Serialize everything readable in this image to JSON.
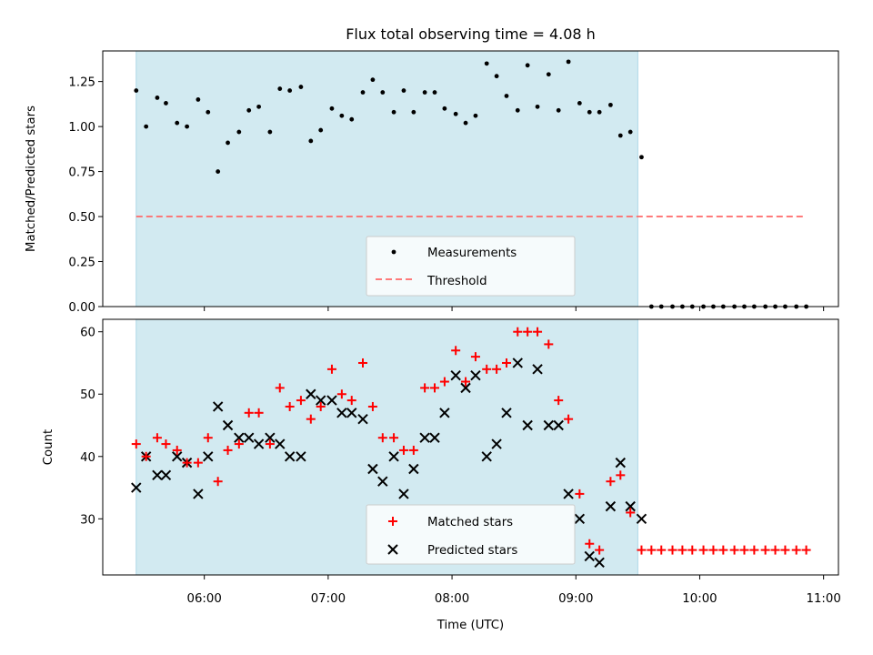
{
  "chart_data": [
    {
      "type": "scatter",
      "title": "Flux total observing time = 4.08 h",
      "xlabel": "",
      "ylabel": "Matched/Predicted stars",
      "ylim": [
        0.0,
        1.42
      ],
      "yticks": [
        "0.00",
        "0.25",
        "0.50",
        "0.75",
        "1.00",
        "1.25"
      ],
      "ytick_values": [
        0.0,
        0.25,
        0.5,
        0.75,
        1.0,
        1.25
      ],
      "shade": {
        "x_start": 5.45,
        "x_end": 9.5,
        "color": "#add8e6"
      },
      "threshold": {
        "name": "Threshold",
        "value": 0.5,
        "x_start": 5.45,
        "x_end": 10.85,
        "color": "#ff6b6b"
      },
      "legend": {
        "position": "lower-center",
        "entries": [
          "Measurements",
          "Threshold"
        ]
      },
      "series": [
        {
          "name": "Measurements",
          "marker": "dot",
          "color": "#000000",
          "x": [
            5.45,
            5.53,
            5.62,
            5.69,
            5.78,
            5.86,
            5.95,
            6.03,
            6.11,
            6.19,
            6.28,
            6.36,
            6.44,
            6.53,
            6.61,
            6.69,
            6.78,
            6.86,
            6.94,
            7.03,
            7.11,
            7.19,
            7.28,
            7.36,
            7.44,
            7.53,
            7.61,
            7.69,
            7.78,
            7.86,
            7.94,
            8.03,
            8.11,
            8.19,
            8.28,
            8.36,
            8.44,
            8.53,
            8.61,
            8.69,
            8.78,
            8.86,
            8.94,
            9.03,
            9.11,
            9.19,
            9.28,
            9.36,
            9.44,
            9.53,
            9.61,
            9.69,
            9.78,
            9.86,
            9.94,
            10.03,
            10.11,
            10.19,
            10.28,
            10.36,
            10.44,
            10.53,
            10.61,
            10.69,
            10.78,
            10.86
          ],
          "y": [
            1.2,
            1.0,
            1.16,
            1.13,
            1.02,
            1.0,
            1.15,
            1.08,
            0.75,
            0.91,
            0.97,
            1.09,
            1.11,
            0.97,
            1.21,
            1.2,
            1.22,
            0.92,
            0.98,
            1.1,
            1.06,
            1.04,
            1.19,
            1.26,
            1.19,
            1.08,
            1.2,
            1.08,
            1.19,
            1.19,
            1.1,
            1.07,
            1.02,
            1.06,
            1.35,
            1.28,
            1.17,
            1.09,
            1.34,
            1.11,
            1.29,
            1.09,
            1.36,
            1.13,
            1.08,
            1.08,
            1.12,
            0.95,
            0.97,
            0.83,
            0,
            0,
            0,
            0,
            0,
            0,
            0,
            0,
            0,
            0,
            0,
            0,
            0,
            0,
            0,
            0
          ]
        }
      ]
    },
    {
      "type": "scatter",
      "title": "",
      "xlabel": "Time (UTC)",
      "ylabel": "Count",
      "xlim": [
        5.18,
        11.12
      ],
      "ylim": [
        21,
        62
      ],
      "xticks": [
        "06:00",
        "07:00",
        "08:00",
        "09:00",
        "10:00",
        "11:00"
      ],
      "xtick_values": [
        6,
        7,
        8,
        9,
        10,
        11
      ],
      "yticks": [
        "30",
        "40",
        "50",
        "60"
      ],
      "ytick_values": [
        30,
        40,
        50,
        60
      ],
      "shade": {
        "x_start": 5.45,
        "x_end": 9.5,
        "color": "#add8e6"
      },
      "legend": {
        "position": "lower-center",
        "entries": [
          "Matched stars",
          "Predicted stars"
        ]
      },
      "series": [
        {
          "name": "Matched stars",
          "marker": "plus",
          "color": "#ff0000",
          "x": [
            5.45,
            5.53,
            5.62,
            5.69,
            5.78,
            5.86,
            5.95,
            6.03,
            6.11,
            6.19,
            6.28,
            6.36,
            6.44,
            6.53,
            6.61,
            6.69,
            6.78,
            6.86,
            6.94,
            7.03,
            7.11,
            7.19,
            7.28,
            7.36,
            7.44,
            7.53,
            7.61,
            7.69,
            7.78,
            7.86,
            7.94,
            8.03,
            8.11,
            8.19,
            8.28,
            8.36,
            8.44,
            8.53,
            8.61,
            8.69,
            8.78,
            8.86,
            8.94,
            9.03,
            9.11,
            9.19,
            9.28,
            9.36,
            9.44,
            9.53,
            9.61,
            9.69,
            9.78,
            9.86,
            9.94,
            10.03,
            10.11,
            10.19,
            10.28,
            10.36,
            10.44,
            10.53,
            10.61,
            10.69,
            10.78,
            10.86
          ],
          "y": [
            42,
            40,
            43,
            42,
            41,
            39,
            39,
            43,
            36,
            41,
            42,
            47,
            47,
            42,
            51,
            48,
            49,
            46,
            48,
            54,
            50,
            49,
            55,
            48,
            43,
            43,
            41,
            41,
            51,
            51,
            52,
            57,
            52,
            56,
            54,
            54,
            55,
            60,
            60,
            60,
            58,
            49,
            46,
            34,
            26,
            25,
            36,
            37,
            31,
            25,
            25,
            25,
            25,
            25,
            25,
            25,
            25,
            25,
            25,
            25,
            25,
            25,
            25,
            25,
            25,
            25
          ]
        },
        {
          "name": "Predicted stars",
          "marker": "x",
          "color": "#000000",
          "x": [
            5.45,
            5.53,
            5.62,
            5.69,
            5.78,
            5.86,
            5.95,
            6.03,
            6.11,
            6.19,
            6.28,
            6.36,
            6.44,
            6.53,
            6.61,
            6.69,
            6.78,
            6.86,
            6.94,
            7.03,
            7.11,
            7.19,
            7.28,
            7.36,
            7.44,
            7.53,
            7.61,
            7.69,
            7.78,
            7.86,
            7.94,
            8.03,
            8.11,
            8.19,
            8.28,
            8.36,
            8.44,
            8.53,
            8.61,
            8.69,
            8.78,
            8.86,
            8.94,
            9.03,
            9.11,
            9.19,
            9.28,
            9.36,
            9.44,
            9.53
          ],
          "y": [
            35,
            40,
            37,
            37,
            40,
            39,
            34,
            40,
            48,
            45,
            43,
            43,
            42,
            43,
            42,
            40,
            40,
            50,
            49,
            49,
            47,
            47,
            46,
            38,
            36,
            40,
            34,
            38,
            43,
            43,
            47,
            53,
            51,
            53,
            40,
            42,
            47,
            55,
            45,
            54,
            45,
            45,
            34,
            30,
            24,
            23,
            32,
            39,
            32,
            30
          ]
        }
      ]
    }
  ]
}
